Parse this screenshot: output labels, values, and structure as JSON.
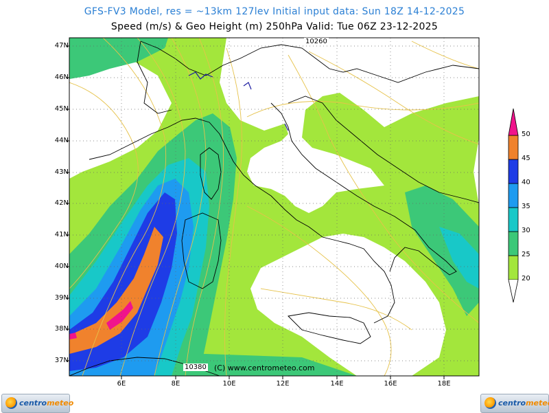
{
  "header": {
    "line1": "GFS-FV3 Model, res = ~13km 127lev   Initial input data: Sun 18Z 14-12-2025",
    "line2": "Speed (m/s) & Geo Height (m) 250hPa  Valid: Tue 06Z 23-12-2025"
  },
  "map": {
    "lat_labels": [
      "47N",
      "46N",
      "45N",
      "44N",
      "43N",
      "42N",
      "41N",
      "40N",
      "39N",
      "38N",
      "37N"
    ],
    "lon_labels": [
      "6E",
      "8E",
      "10E",
      "12E",
      "14E",
      "16E",
      "18E"
    ],
    "isoline_labels": [
      "10260",
      "10380"
    ],
    "copyright": "(C) www.centrometeo.com",
    "colors": {
      "land": "#ffffff",
      "c20": "#a3e63c",
      "c25": "#3cc878",
      "c30": "#18c8c8",
      "c35": "#1e9bf0",
      "c40": "#1e3ce6",
      "c45": "#f0822d",
      "c50": "#f0148c",
      "isoline": "#e6c24a",
      "border": "#000000"
    }
  },
  "colorbar": {
    "labels": [
      "50",
      "45",
      "40",
      "35",
      "30",
      "25",
      "20"
    ],
    "units": "m/s"
  },
  "logos": {
    "left": {
      "part1": "centro",
      "part2": "meteo"
    },
    "right": {
      "part1": "centro",
      "part2": "meteo"
    }
  }
}
